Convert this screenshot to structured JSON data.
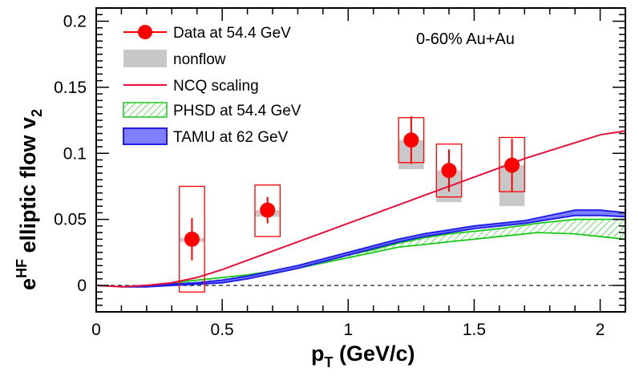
{
  "chart_data": {
    "type": "scatter",
    "title": "",
    "annotation": "0-60% Au+Au",
    "xlabel": {
      "main": "p",
      "sub": "T",
      "rest": " (GeV/c)"
    },
    "ylabel": {
      "main": "e",
      "sup": "HF",
      "rest": " elliptic flow v",
      "sub": "2"
    },
    "xlim": [
      0,
      2.1
    ],
    "ylim": [
      -0.02,
      0.21
    ],
    "x_ticks": [
      0,
      0.5,
      1,
      1.5,
      2
    ],
    "x_tick_labels": [
      "0",
      "0.5",
      "1",
      "1.5",
      "2"
    ],
    "y_ticks": [
      0,
      0.05,
      0.1,
      0.15,
      0.2
    ],
    "y_tick_labels": [
      "0",
      "0.05",
      "0.1",
      "0.15",
      "0.2"
    ],
    "legend": [
      {
        "key": "data",
        "label": "Data at 54.4 GeV"
      },
      {
        "key": "nonflow",
        "label": "nonflow"
      },
      {
        "key": "ncq",
        "label": "NCQ scaling"
      },
      {
        "key": "phsd",
        "label": "PHSD at 54.4 GeV"
      },
      {
        "key": "tamu",
        "label": "TAMU at 62 GeV"
      }
    ],
    "colors": {
      "data": "#ff0000",
      "nonflow": "#c8c8c8",
      "ncq": "#e8103a",
      "phsd": "#19c819",
      "tamu": "#1f1fe8",
      "tamu_fill": "#8080ff"
    },
    "series": [
      {
        "name": "Data at 54.4 GeV",
        "x": [
          0.38,
          0.68,
          1.25,
          1.4,
          1.65
        ],
        "y": [
          0.035,
          0.057,
          0.11,
          0.087,
          0.091
        ],
        "stat_err": [
          0.016,
          0.01,
          0.018,
          0.016,
          0.02
        ],
        "sys_box": [
          [
            -0.005,
            0.075
          ],
          [
            0.037,
            0.076
          ],
          [
            0.093,
            0.127
          ],
          [
            0.067,
            0.107
          ],
          [
            0.071,
            0.112
          ]
        ],
        "box_half_width": 0.05
      },
      {
        "name": "nonflow",
        "x": [
          0.38,
          0.68,
          1.25,
          1.4,
          1.65
        ],
        "low": [
          0.033,
          0.052,
          0.088,
          0.063,
          0.06
        ],
        "high": [
          0.036,
          0.057,
          0.11,
          0.087,
          0.091
        ],
        "half_width": 0.05
      },
      {
        "name": "NCQ scaling",
        "x": [
          0,
          0.1,
          0.2,
          0.3,
          0.4,
          0.5,
          0.6,
          0.7,
          0.8,
          0.9,
          1.0,
          1.1,
          1.2,
          1.3,
          1.4,
          1.5,
          1.6,
          1.7,
          1.8,
          1.9,
          2.0,
          2.1
        ],
        "y": [
          0,
          -0.001,
          0,
          0.002,
          0.006,
          0.012,
          0.019,
          0.026,
          0.033,
          0.04,
          0.047,
          0.054,
          0.061,
          0.068,
          0.075,
          0.082,
          0.089,
          0.096,
          0.102,
          0.108,
          0.114,
          0.117
        ]
      },
      {
        "name": "PHSD at 54.4 GeV",
        "x": [
          0.1,
          0.2,
          0.3,
          0.4,
          0.5,
          0.6,
          0.7,
          0.8,
          0.9,
          1.0,
          1.1,
          1.2,
          1.3,
          1.4,
          1.5,
          1.6,
          1.75,
          1.9,
          2.0,
          2.1
        ],
        "low": [
          -0.001,
          -0.001,
          0.001,
          0.002,
          0.004,
          0.006,
          0.009,
          0.013,
          0.017,
          0.021,
          0.025,
          0.029,
          0.031,
          0.033,
          0.035,
          0.037,
          0.04,
          0.039,
          0.037,
          0.035
        ],
        "high": [
          -0.001,
          0,
          0.002,
          0.004,
          0.006,
          0.008,
          0.011,
          0.015,
          0.019,
          0.023,
          0.027,
          0.032,
          0.036,
          0.039,
          0.041,
          0.043,
          0.047,
          0.05,
          0.05,
          0.05
        ]
      },
      {
        "name": "TAMU at 62 GeV",
        "x": [
          0.1,
          0.2,
          0.3,
          0.4,
          0.5,
          0.6,
          0.7,
          0.8,
          0.9,
          1.0,
          1.1,
          1.2,
          1.3,
          1.4,
          1.5,
          1.6,
          1.7,
          1.8,
          1.9,
          2.0,
          2.1
        ],
        "low": [
          -0.001,
          -0.001,
          0,
          0.001,
          0.002,
          0.005,
          0.009,
          0.013,
          0.018,
          0.023,
          0.028,
          0.033,
          0.037,
          0.04,
          0.043,
          0.045,
          0.047,
          0.05,
          0.053,
          0.053,
          0.052
        ],
        "high": [
          -0.001,
          0,
          0.001,
          0.002,
          0.004,
          0.007,
          0.011,
          0.015,
          0.02,
          0.025,
          0.03,
          0.035,
          0.039,
          0.042,
          0.045,
          0.047,
          0.049,
          0.053,
          0.057,
          0.057,
          0.055
        ]
      }
    ]
  }
}
